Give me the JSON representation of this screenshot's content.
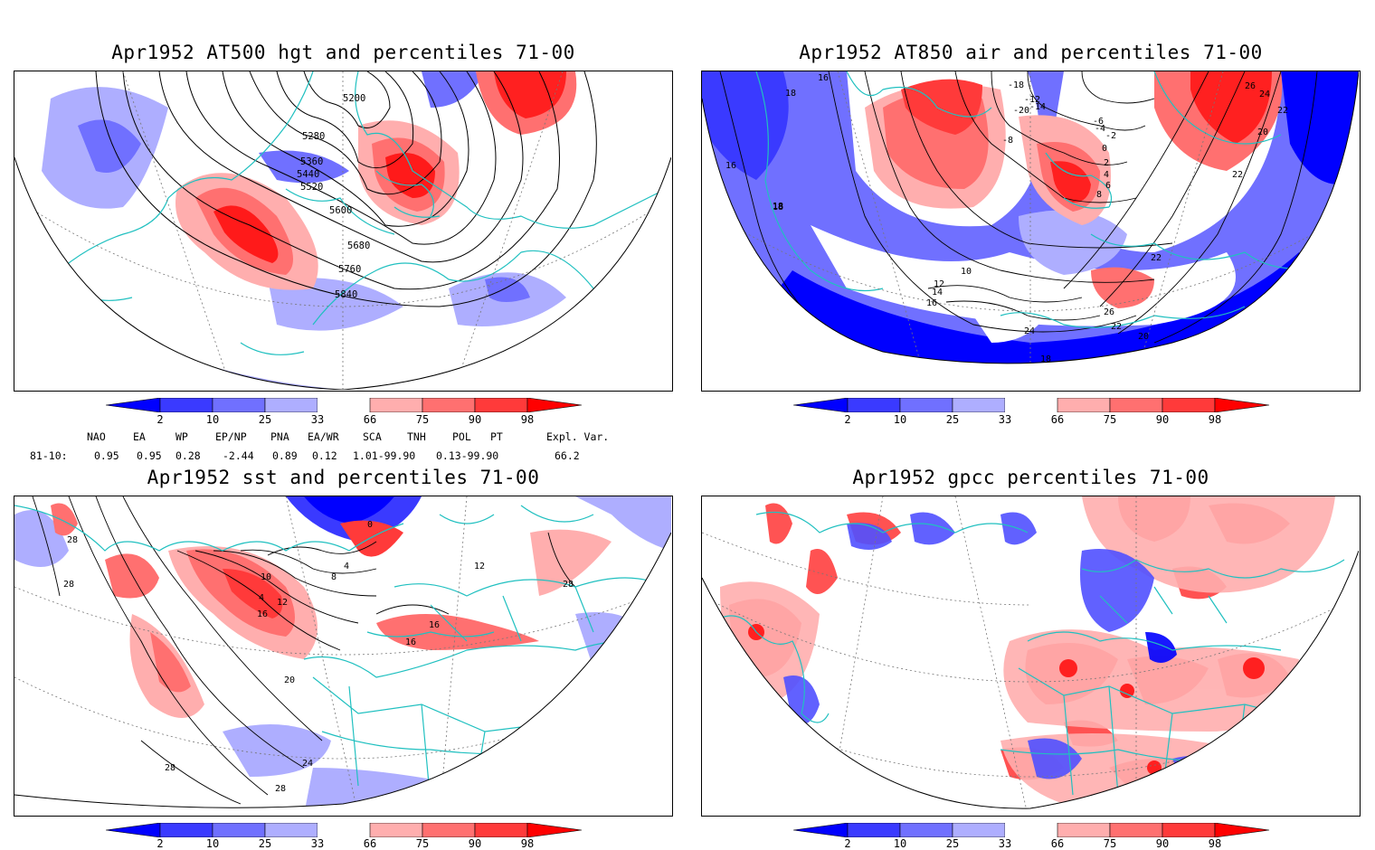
{
  "panels": [
    {
      "id": "tl",
      "title": "Apr1952 AT500 hgt and percentiles 71-00",
      "contour_labels": [
        "5200",
        "5280",
        "5360",
        "5440",
        "5520",
        "5600",
        "5680",
        "5760",
        "5840"
      ]
    },
    {
      "id": "tr",
      "title": "Apr1952 AT850 air and percentiles 71-00",
      "contour_labels": [
        "18",
        "16",
        "18",
        "18",
        "16",
        "18",
        "-18",
        "-20",
        "-14",
        "-12",
        "-6",
        "-4",
        "-2",
        "0",
        "2",
        "4",
        "6",
        "8",
        "-8",
        "26",
        "24",
        "22",
        "20",
        "22",
        "10",
        "12",
        "14",
        "16",
        "22",
        "26",
        "24",
        "22",
        "18",
        "20"
      ]
    },
    {
      "id": "bl",
      "title": "Apr1952 sst and percentiles 71-00",
      "contour_labels": [
        "28",
        "28",
        "10",
        "4",
        "8",
        "4",
        "12",
        "16",
        "0",
        "12",
        "16",
        "16",
        "20",
        "24",
        "28",
        "28",
        "28"
      ]
    },
    {
      "id": "br",
      "title": "Apr1952 gpcc percentiles 71-00",
      "contour_labels": []
    }
  ],
  "colorbar": {
    "ticks": [
      "2",
      "10",
      "25",
      "33",
      "66",
      "75",
      "90",
      "98"
    ],
    "colors": [
      "#0000ff",
      "#3a3aff",
      "#7070ff",
      "#aeaeff",
      "#ffffff",
      "#ffaeae",
      "#ff7070",
      "#ff3a3a",
      "#ff0000"
    ]
  },
  "indices": {
    "headers": [
      "NAO",
      "EA",
      "WP",
      "EP/NP",
      "PNA",
      "EA/WR",
      "SCA",
      "TNH",
      "POL",
      "PT",
      "Expl. Var."
    ],
    "row_label": "81-10:",
    "values": [
      "0.95",
      "0.95",
      "0.28",
      "-2.44",
      "0.89",
      "0.12",
      "1.01-99.90",
      "0.13-99.90",
      "66.2"
    ]
  },
  "colors": {
    "coast": "#20c0c0",
    "border": "#000000",
    "pos": "#ff2020",
    "neg": "#2020ff"
  }
}
